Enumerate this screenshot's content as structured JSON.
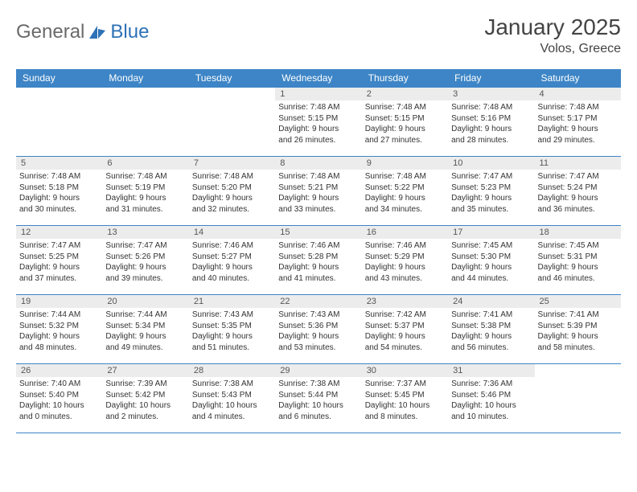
{
  "brand": {
    "part1": "General",
    "part2": "Blue"
  },
  "title": "January 2025",
  "location": "Volos, Greece",
  "colors": {
    "header_bg": "#3d85c6",
    "header_text": "#ffffff",
    "border": "#3d85c6",
    "daynum_bg": "#ececec",
    "text": "#333333",
    "logo_gray": "#6a6a6a",
    "logo_blue": "#2d72b6",
    "page_bg": "#ffffff"
  },
  "day_headers": [
    "Sunday",
    "Monday",
    "Tuesday",
    "Wednesday",
    "Thursday",
    "Friday",
    "Saturday"
  ],
  "weeks": [
    [
      null,
      null,
      null,
      {
        "n": "1",
        "sr": "Sunrise: 7:48 AM",
        "ss": "Sunset: 5:15 PM",
        "d1": "Daylight: 9 hours",
        "d2": "and 26 minutes."
      },
      {
        "n": "2",
        "sr": "Sunrise: 7:48 AM",
        "ss": "Sunset: 5:15 PM",
        "d1": "Daylight: 9 hours",
        "d2": "and 27 minutes."
      },
      {
        "n": "3",
        "sr": "Sunrise: 7:48 AM",
        "ss": "Sunset: 5:16 PM",
        "d1": "Daylight: 9 hours",
        "d2": "and 28 minutes."
      },
      {
        "n": "4",
        "sr": "Sunrise: 7:48 AM",
        "ss": "Sunset: 5:17 PM",
        "d1": "Daylight: 9 hours",
        "d2": "and 29 minutes."
      }
    ],
    [
      {
        "n": "5",
        "sr": "Sunrise: 7:48 AM",
        "ss": "Sunset: 5:18 PM",
        "d1": "Daylight: 9 hours",
        "d2": "and 30 minutes."
      },
      {
        "n": "6",
        "sr": "Sunrise: 7:48 AM",
        "ss": "Sunset: 5:19 PM",
        "d1": "Daylight: 9 hours",
        "d2": "and 31 minutes."
      },
      {
        "n": "7",
        "sr": "Sunrise: 7:48 AM",
        "ss": "Sunset: 5:20 PM",
        "d1": "Daylight: 9 hours",
        "d2": "and 32 minutes."
      },
      {
        "n": "8",
        "sr": "Sunrise: 7:48 AM",
        "ss": "Sunset: 5:21 PM",
        "d1": "Daylight: 9 hours",
        "d2": "and 33 minutes."
      },
      {
        "n": "9",
        "sr": "Sunrise: 7:48 AM",
        "ss": "Sunset: 5:22 PM",
        "d1": "Daylight: 9 hours",
        "d2": "and 34 minutes."
      },
      {
        "n": "10",
        "sr": "Sunrise: 7:47 AM",
        "ss": "Sunset: 5:23 PM",
        "d1": "Daylight: 9 hours",
        "d2": "and 35 minutes."
      },
      {
        "n": "11",
        "sr": "Sunrise: 7:47 AM",
        "ss": "Sunset: 5:24 PM",
        "d1": "Daylight: 9 hours",
        "d2": "and 36 minutes."
      }
    ],
    [
      {
        "n": "12",
        "sr": "Sunrise: 7:47 AM",
        "ss": "Sunset: 5:25 PM",
        "d1": "Daylight: 9 hours",
        "d2": "and 37 minutes."
      },
      {
        "n": "13",
        "sr": "Sunrise: 7:47 AM",
        "ss": "Sunset: 5:26 PM",
        "d1": "Daylight: 9 hours",
        "d2": "and 39 minutes."
      },
      {
        "n": "14",
        "sr": "Sunrise: 7:46 AM",
        "ss": "Sunset: 5:27 PM",
        "d1": "Daylight: 9 hours",
        "d2": "and 40 minutes."
      },
      {
        "n": "15",
        "sr": "Sunrise: 7:46 AM",
        "ss": "Sunset: 5:28 PM",
        "d1": "Daylight: 9 hours",
        "d2": "and 41 minutes."
      },
      {
        "n": "16",
        "sr": "Sunrise: 7:46 AM",
        "ss": "Sunset: 5:29 PM",
        "d1": "Daylight: 9 hours",
        "d2": "and 43 minutes."
      },
      {
        "n": "17",
        "sr": "Sunrise: 7:45 AM",
        "ss": "Sunset: 5:30 PM",
        "d1": "Daylight: 9 hours",
        "d2": "and 44 minutes."
      },
      {
        "n": "18",
        "sr": "Sunrise: 7:45 AM",
        "ss": "Sunset: 5:31 PM",
        "d1": "Daylight: 9 hours",
        "d2": "and 46 minutes."
      }
    ],
    [
      {
        "n": "19",
        "sr": "Sunrise: 7:44 AM",
        "ss": "Sunset: 5:32 PM",
        "d1": "Daylight: 9 hours",
        "d2": "and 48 minutes."
      },
      {
        "n": "20",
        "sr": "Sunrise: 7:44 AM",
        "ss": "Sunset: 5:34 PM",
        "d1": "Daylight: 9 hours",
        "d2": "and 49 minutes."
      },
      {
        "n": "21",
        "sr": "Sunrise: 7:43 AM",
        "ss": "Sunset: 5:35 PM",
        "d1": "Daylight: 9 hours",
        "d2": "and 51 minutes."
      },
      {
        "n": "22",
        "sr": "Sunrise: 7:43 AM",
        "ss": "Sunset: 5:36 PM",
        "d1": "Daylight: 9 hours",
        "d2": "and 53 minutes."
      },
      {
        "n": "23",
        "sr": "Sunrise: 7:42 AM",
        "ss": "Sunset: 5:37 PM",
        "d1": "Daylight: 9 hours",
        "d2": "and 54 minutes."
      },
      {
        "n": "24",
        "sr": "Sunrise: 7:41 AM",
        "ss": "Sunset: 5:38 PM",
        "d1": "Daylight: 9 hours",
        "d2": "and 56 minutes."
      },
      {
        "n": "25",
        "sr": "Sunrise: 7:41 AM",
        "ss": "Sunset: 5:39 PM",
        "d1": "Daylight: 9 hours",
        "d2": "and 58 minutes."
      }
    ],
    [
      {
        "n": "26",
        "sr": "Sunrise: 7:40 AM",
        "ss": "Sunset: 5:40 PM",
        "d1": "Daylight: 10 hours",
        "d2": "and 0 minutes."
      },
      {
        "n": "27",
        "sr": "Sunrise: 7:39 AM",
        "ss": "Sunset: 5:42 PM",
        "d1": "Daylight: 10 hours",
        "d2": "and 2 minutes."
      },
      {
        "n": "28",
        "sr": "Sunrise: 7:38 AM",
        "ss": "Sunset: 5:43 PM",
        "d1": "Daylight: 10 hours",
        "d2": "and 4 minutes."
      },
      {
        "n": "29",
        "sr": "Sunrise: 7:38 AM",
        "ss": "Sunset: 5:44 PM",
        "d1": "Daylight: 10 hours",
        "d2": "and 6 minutes."
      },
      {
        "n": "30",
        "sr": "Sunrise: 7:37 AM",
        "ss": "Sunset: 5:45 PM",
        "d1": "Daylight: 10 hours",
        "d2": "and 8 minutes."
      },
      {
        "n": "31",
        "sr": "Sunrise: 7:36 AM",
        "ss": "Sunset: 5:46 PM",
        "d1": "Daylight: 10 hours",
        "d2": "and 10 minutes."
      },
      null
    ]
  ]
}
